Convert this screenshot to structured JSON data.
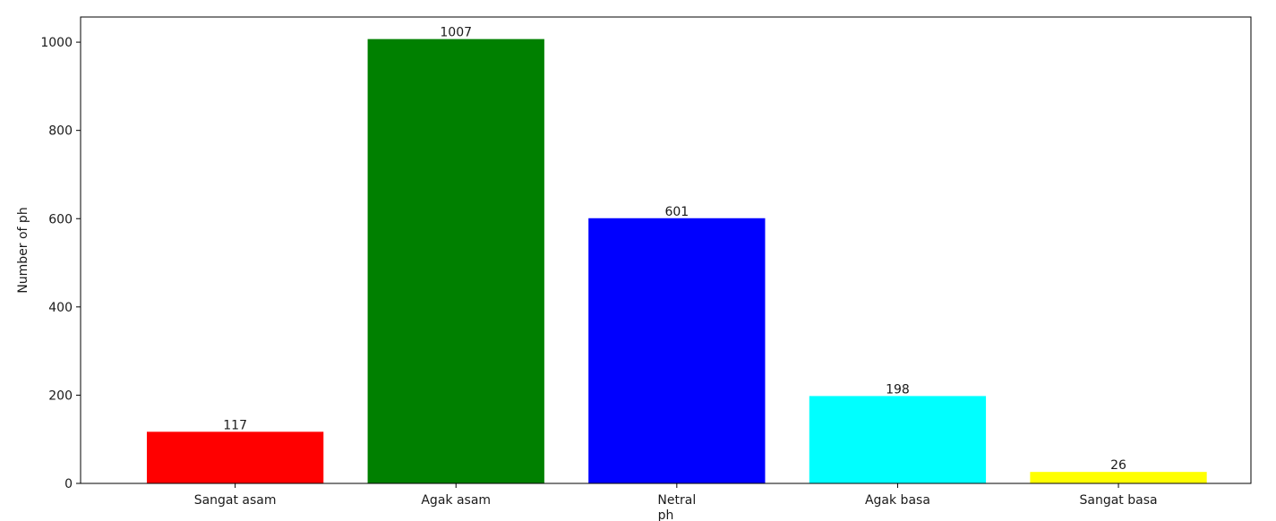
{
  "chart_data": {
    "type": "bar",
    "categories": [
      "Sangat asam",
      "Agak asam",
      "Netral",
      "Agak basa",
      "Sangat basa"
    ],
    "values": [
      117,
      1007,
      601,
      198,
      26
    ],
    "colors": [
      "#ff0000",
      "#008000",
      "#0000ff",
      "#00ffff",
      "#ffff00"
    ],
    "data_labels": [
      "117",
      "1007",
      "601",
      "198",
      "26"
    ],
    "xlabel": "ph",
    "ylabel": "Number of ph",
    "ylim": [
      0,
      1057
    ],
    "yticks": [
      0,
      200,
      400,
      600,
      800,
      1000
    ],
    "ytick_labels": [
      "0",
      "200",
      "400",
      "600",
      "800",
      "1000"
    ],
    "grid": false
  }
}
